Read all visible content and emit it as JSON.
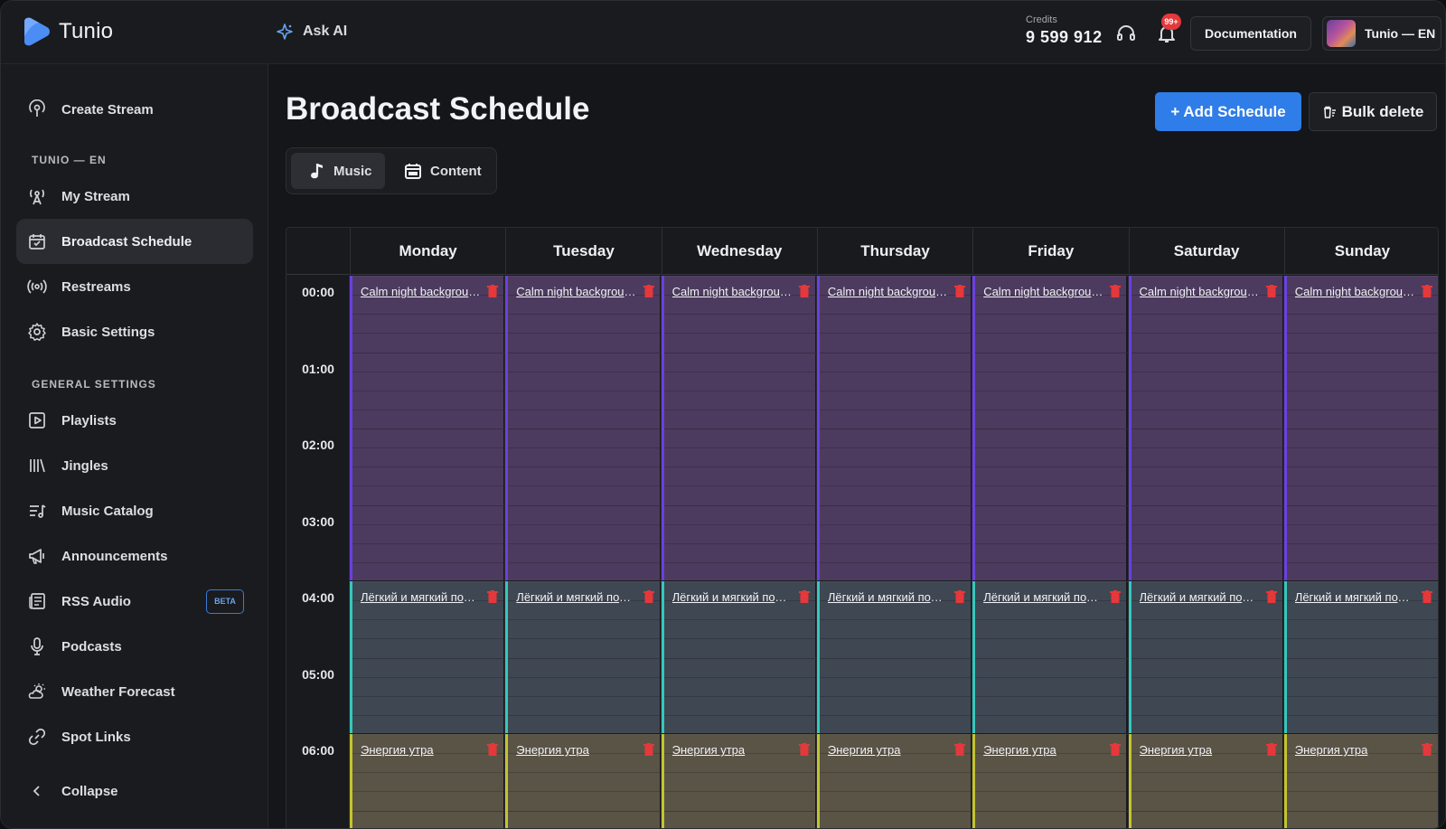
{
  "app": {
    "name": "Tunio"
  },
  "header": {
    "ask_ai": "Ask AI",
    "credits_label": "Credits",
    "credits_value": "9 599 912",
    "notifications_badge": "99+",
    "documentation": "Documentation",
    "account_name": "Tunio — EN"
  },
  "sidebar": {
    "create_stream": "Create Stream",
    "section_station": "TUNIO — EN",
    "station_items": [
      {
        "label": "My Stream",
        "icon": "radio-tower-icon"
      },
      {
        "label": "Broadcast Schedule",
        "icon": "calendar-icon"
      },
      {
        "label": "Restreams",
        "icon": "broadcast-icon"
      },
      {
        "label": "Basic Settings",
        "icon": "gear-icon"
      }
    ],
    "section_general": "GENERAL SETTINGS",
    "general_items": [
      {
        "label": "Playlists",
        "icon": "play-square-icon"
      },
      {
        "label": "Jingles",
        "icon": "library-icon"
      },
      {
        "label": "Music Catalog",
        "icon": "music-list-icon"
      },
      {
        "label": "Announcements",
        "icon": "megaphone-icon"
      },
      {
        "label": "RSS Audio",
        "icon": "newspaper-icon",
        "badge": "BETA"
      },
      {
        "label": "Podcasts",
        "icon": "microphone-icon"
      },
      {
        "label": "Weather Forecast",
        "icon": "weather-icon"
      },
      {
        "label": "Spot Links",
        "icon": "link-icon"
      }
    ],
    "collapse": "Collapse"
  },
  "main": {
    "title": "Broadcast Schedule",
    "add_schedule": "+ Add Schedule",
    "bulk_delete": "Bulk delete",
    "tabs": [
      {
        "label": "Music",
        "active": true
      },
      {
        "label": "Content",
        "active": false
      }
    ]
  },
  "calendar": {
    "days": [
      "Monday",
      "Tuesday",
      "Wednesday",
      "Thursday",
      "Friday",
      "Saturday",
      "Sunday"
    ],
    "times": [
      "00:00",
      "01:00",
      "02:00",
      "03:00",
      "04:00",
      "05:00",
      "06:00"
    ],
    "events": [
      {
        "title": "Calm night background",
        "start_hour": 0,
        "end_hour": 4,
        "color": "#6a40e0"
      },
      {
        "title": "Лёгкий и мягкий подкаст",
        "start_hour": 4,
        "end_hour": 6,
        "color": "#35c7bd"
      },
      {
        "title": "Энергия утра",
        "start_hour": 6,
        "end_hour": 8,
        "color": "#c4c42e"
      }
    ]
  },
  "colors": {
    "accent": "#2f7de8",
    "badge": "#e5383b",
    "delete": "#e5383b"
  }
}
